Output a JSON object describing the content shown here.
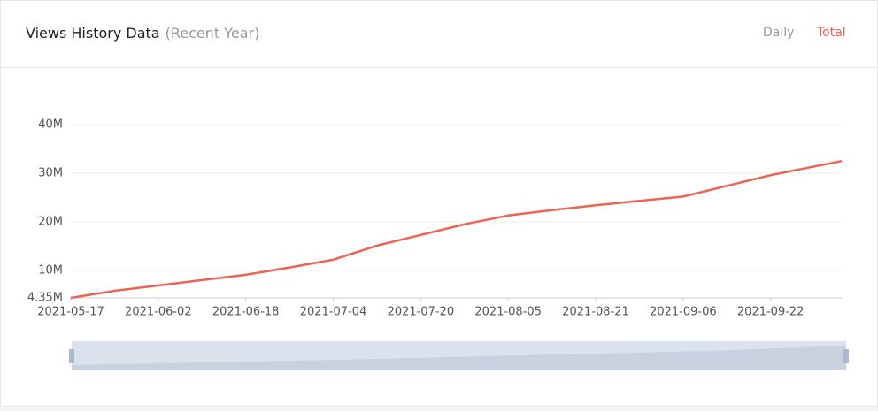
{
  "header": {
    "title": "Views History Data",
    "subtitle": "(Recent Year)",
    "tabs": [
      "Daily",
      "Total"
    ]
  },
  "chart_data": {
    "type": "line",
    "color": "#ee6352",
    "x": [
      "2021-05-17",
      "2021-05-25",
      "2021-06-02",
      "2021-06-10",
      "2021-06-18",
      "2021-06-26",
      "2021-07-04",
      "2021-07-12",
      "2021-07-20",
      "2021-07-28",
      "2021-08-05",
      "2021-08-13",
      "2021-08-21",
      "2021-08-29",
      "2021-09-06",
      "2021-09-14",
      "2021-09-22",
      "2021-09-30",
      "2021-10-05"
    ],
    "values": [
      4350000,
      5800000,
      6900000,
      8000000,
      9100000,
      10600000,
      12200000,
      15100000,
      17300000,
      19500000,
      21300000,
      22400000,
      23400000,
      24300000,
      25200000,
      27400000,
      29600000,
      31400000,
      32500000
    ],
    "xlim": [
      "2021-05-17",
      "2021-10-05"
    ],
    "xticks": [
      "2021-05-17",
      "2021-06-02",
      "2021-06-18",
      "2021-07-04",
      "2021-07-20",
      "2021-08-05",
      "2021-08-21",
      "2021-09-06",
      "2021-09-22"
    ],
    "ylim": [
      4350000,
      40000000
    ],
    "yticks": [
      {
        "value": 4350000,
        "label": "4.35M"
      },
      {
        "value": 10000000,
        "label": "10M"
      },
      {
        "value": 20000000,
        "label": "20M"
      },
      {
        "value": 30000000,
        "label": "30M"
      },
      {
        "value": 40000000,
        "label": "40M"
      }
    ],
    "grid": true
  }
}
